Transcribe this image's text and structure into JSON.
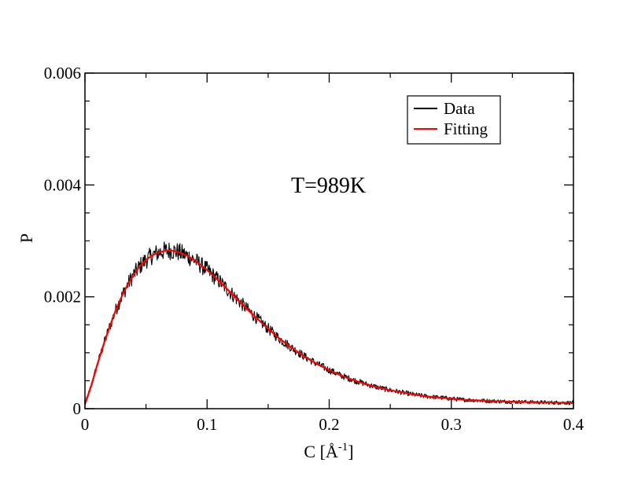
{
  "chart_data": {
    "type": "line",
    "xlabel_main": "C [",
    "xlabel_unit": "Å",
    "xlabel_exp": "-1",
    "xlabel_close": "]",
    "ylabel": "P",
    "xlim": [
      0,
      0.4
    ],
    "ylim": [
      0,
      0.006
    ],
    "x_ticks": [
      {
        "value": 0,
        "label": "0"
      },
      {
        "value": 0.1,
        "label": "0.1"
      },
      {
        "value": 0.2,
        "label": "0.2"
      },
      {
        "value": 0.3,
        "label": "0.3"
      },
      {
        "value": 0.4,
        "label": "0.4"
      }
    ],
    "y_ticks": [
      {
        "value": 0,
        "label": "0"
      },
      {
        "value": 0.002,
        "label": "0.002"
      },
      {
        "value": 0.004,
        "label": "0.004"
      },
      {
        "value": 0.006,
        "label": "0.006"
      }
    ],
    "annotation": "T=989K",
    "legend_position": "top-right",
    "grid": false,
    "series": [
      {
        "name": "Data",
        "color": "#000000",
        "noisy": true,
        "x": [
          0,
          0.005,
          0.01,
          0.015,
          0.02,
          0.025,
          0.03,
          0.035,
          0.04,
          0.045,
          0.05,
          0.055,
          0.06,
          0.065,
          0.07,
          0.075,
          0.08,
          0.085,
          0.09,
          0.1,
          0.11,
          0.12,
          0.13,
          0.14,
          0.15,
          0.16,
          0.17,
          0.18,
          0.19,
          0.2,
          0.21,
          0.22,
          0.23,
          0.24,
          0.25,
          0.26,
          0.27,
          0.28,
          0.29,
          0.3,
          0.31,
          0.32,
          0.33,
          0.34,
          0.35,
          0.36,
          0.37,
          0.38,
          0.39,
          0.4
        ],
        "y": [
          8e-05,
          0.0004,
          0.00078,
          0.00113,
          0.00145,
          0.00175,
          0.002,
          0.00222,
          0.0024,
          0.00255,
          0.00266,
          0.00274,
          0.00279,
          0.00282,
          0.00283,
          0.00281,
          0.00277,
          0.00272,
          0.00265,
          0.00248,
          0.00228,
          0.00206,
          0.00184,
          0.00163,
          0.00143,
          0.00124,
          0.00108,
          0.00093,
          0.0008,
          0.00069,
          0.00059,
          0.00051,
          0.00044,
          0.00038,
          0.00033,
          0.00029,
          0.00025,
          0.00022,
          0.0002,
          0.00018,
          0.00016,
          0.00015,
          0.00014,
          0.00013,
          0.000125,
          0.00012,
          0.000115,
          0.00011,
          0.000108,
          0.000105
        ]
      },
      {
        "name": "Fitting",
        "color": "#ff0000",
        "noisy": false,
        "x": [
          0,
          0.005,
          0.01,
          0.015,
          0.02,
          0.025,
          0.03,
          0.035,
          0.04,
          0.045,
          0.05,
          0.055,
          0.06,
          0.065,
          0.07,
          0.075,
          0.08,
          0.085,
          0.09,
          0.1,
          0.11,
          0.12,
          0.13,
          0.14,
          0.15,
          0.16,
          0.17,
          0.18,
          0.19,
          0.2,
          0.21,
          0.22,
          0.23,
          0.24,
          0.25,
          0.26,
          0.27,
          0.28,
          0.29,
          0.3,
          0.31,
          0.32,
          0.33,
          0.34,
          0.35,
          0.36,
          0.37,
          0.38,
          0.39,
          0.4
        ],
        "y": [
          8e-05,
          0.0004,
          0.00078,
          0.00113,
          0.00145,
          0.00175,
          0.002,
          0.00222,
          0.0024,
          0.00255,
          0.00266,
          0.00274,
          0.00279,
          0.00282,
          0.00283,
          0.00281,
          0.00277,
          0.00272,
          0.00265,
          0.00248,
          0.00228,
          0.00206,
          0.00184,
          0.00163,
          0.00143,
          0.00124,
          0.00108,
          0.00093,
          0.0008,
          0.00069,
          0.00059,
          0.00051,
          0.00044,
          0.00038,
          0.00033,
          0.00029,
          0.00025,
          0.00022,
          0.0002,
          0.00018,
          0.00016,
          0.00015,
          0.00014,
          0.00013,
          0.000125,
          0.00012,
          0.000115,
          0.00011,
          0.000108,
          0.000105
        ]
      }
    ]
  }
}
